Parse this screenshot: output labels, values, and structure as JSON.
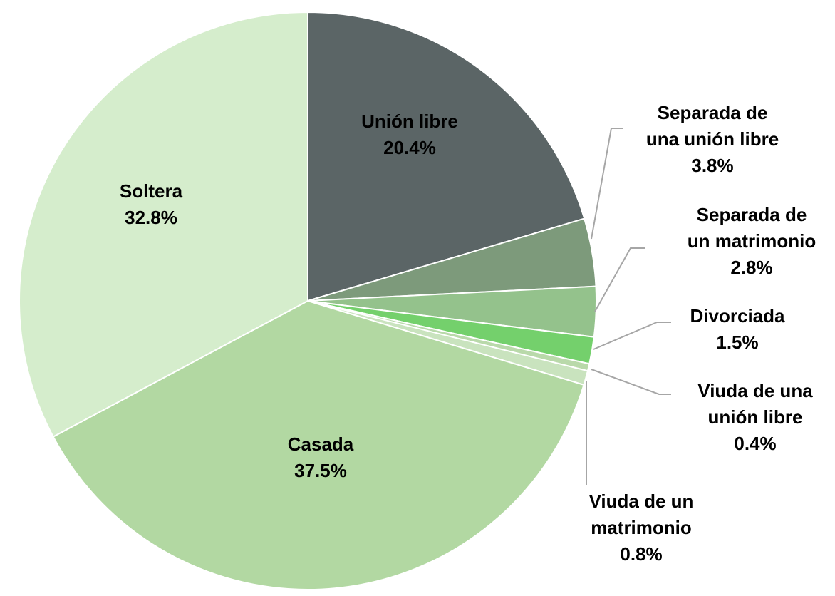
{
  "chart_data": {
    "type": "pie",
    "categories": [
      "Unión libre",
      "Separada de una unión libre",
      "Separada de un matrimonio",
      "Divorciada",
      "Viuda de una unión libre",
      "Viuda de un matrimonio",
      "Casada",
      "Soltera"
    ],
    "values": [
      20.4,
      3.8,
      2.8,
      1.5,
      0.4,
      0.8,
      37.5,
      32.8
    ],
    "value_labels": [
      "20.4%",
      "3.8%",
      "2.8%",
      "1.5%",
      "0.4%",
      "0.8%",
      "37.5%",
      "32.8%"
    ],
    "colors": [
      "#5b6566",
      "#7d9a7b",
      "#94c28c",
      "#74d06c",
      "#b9d9aa",
      "#c9e3be",
      "#b2d8a2",
      "#d5edcc"
    ]
  }
}
